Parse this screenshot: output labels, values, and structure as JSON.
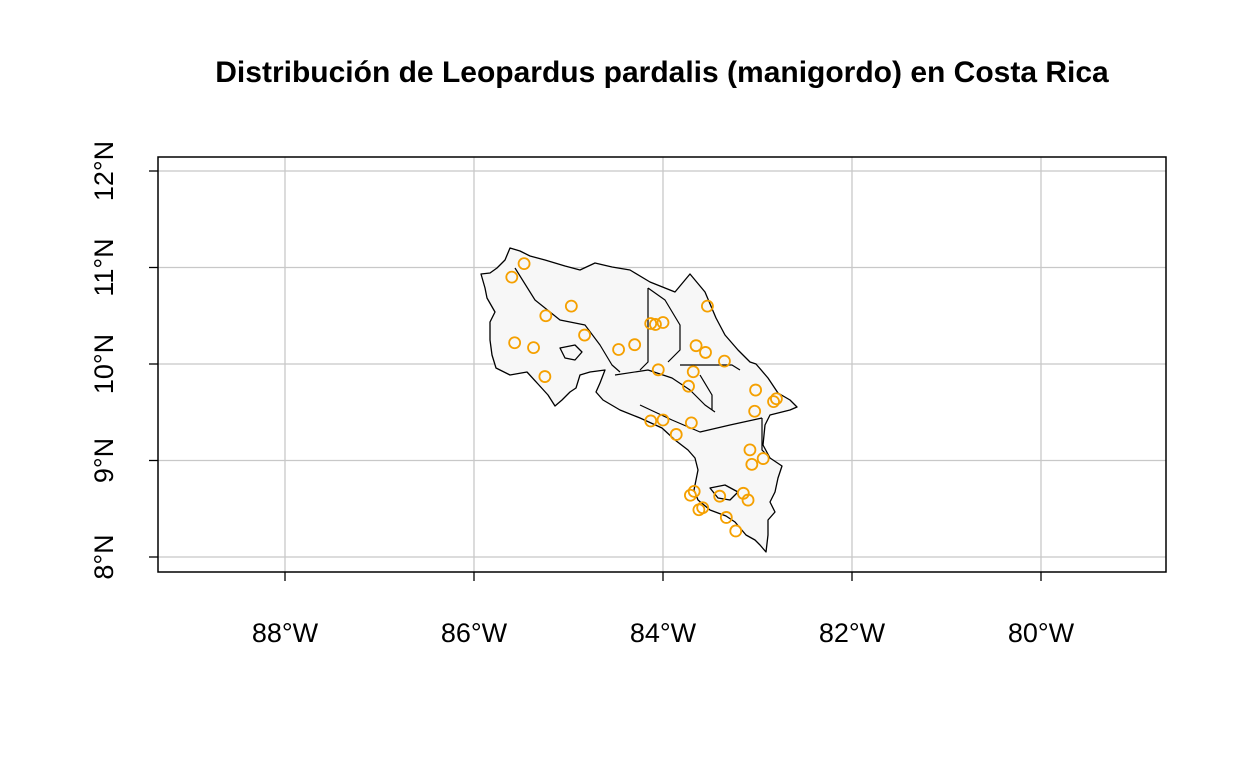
{
  "title": "Distribución de Leopardus pardalis (manigordo) en Costa Rica",
  "chart_data": {
    "type": "scatter",
    "map_region": "Costa Rica",
    "xlim": [
      -89.35,
      -78.65
    ],
    "ylim": [
      7.85,
      12.2
    ],
    "grid": true,
    "x_ticks": [
      {
        "value": -88,
        "label": "88°W"
      },
      {
        "value": -86,
        "label": "86°W"
      },
      {
        "value": -84,
        "label": "84°W"
      },
      {
        "value": -82,
        "label": "82°W"
      },
      {
        "value": -80,
        "label": "80°W"
      }
    ],
    "y_ticks": [
      {
        "value": 8,
        "label": "8°N"
      },
      {
        "value": 9,
        "label": "9°N"
      },
      {
        "value": 10,
        "label": "10°N"
      },
      {
        "value": 11,
        "label": "11°N"
      },
      {
        "value": 12,
        "label": "12°N"
      }
    ],
    "marker_color": "#f5a000",
    "points": [
      {
        "lon": -85.6,
        "lat": 10.9
      },
      {
        "lon": -85.47,
        "lat": 11.04
      },
      {
        "lon": -85.24,
        "lat": 10.5
      },
      {
        "lon": -84.97,
        "lat": 10.6
      },
      {
        "lon": -84.83,
        "lat": 10.3
      },
      {
        "lon": -85.57,
        "lat": 10.22
      },
      {
        "lon": -85.37,
        "lat": 10.17
      },
      {
        "lon": -85.25,
        "lat": 9.87
      },
      {
        "lon": -84.47,
        "lat": 10.15
      },
      {
        "lon": -84.3,
        "lat": 10.2
      },
      {
        "lon": -84.13,
        "lat": 10.42
      },
      {
        "lon": -84.08,
        "lat": 10.41
      },
      {
        "lon": -84.0,
        "lat": 10.43
      },
      {
        "lon": -84.05,
        "lat": 9.94
      },
      {
        "lon": -84.13,
        "lat": 9.41
      },
      {
        "lon": -84.0,
        "lat": 9.42
      },
      {
        "lon": -83.86,
        "lat": 9.27
      },
      {
        "lon": -83.7,
        "lat": 9.39
      },
      {
        "lon": -83.53,
        "lat": 10.6
      },
      {
        "lon": -83.65,
        "lat": 10.19
      },
      {
        "lon": -83.55,
        "lat": 10.12
      },
      {
        "lon": -83.35,
        "lat": 10.03
      },
      {
        "lon": -83.68,
        "lat": 9.92
      },
      {
        "lon": -83.73,
        "lat": 9.77
      },
      {
        "lon": -83.02,
        "lat": 9.73
      },
      {
        "lon": -83.03,
        "lat": 9.51
      },
      {
        "lon": -82.8,
        "lat": 9.64
      },
      {
        "lon": -82.83,
        "lat": 9.61
      },
      {
        "lon": -83.08,
        "lat": 9.11
      },
      {
        "lon": -82.94,
        "lat": 9.02
      },
      {
        "lon": -83.06,
        "lat": 8.96
      },
      {
        "lon": -83.71,
        "lat": 8.64
      },
      {
        "lon": -83.67,
        "lat": 8.68
      },
      {
        "lon": -83.58,
        "lat": 8.51
      },
      {
        "lon": -83.62,
        "lat": 8.49
      },
      {
        "lon": -83.4,
        "lat": 8.63
      },
      {
        "lon": -83.15,
        "lat": 8.66
      },
      {
        "lon": -83.1,
        "lat": 8.59
      },
      {
        "lon": -83.33,
        "lat": 8.41
      },
      {
        "lon": -83.23,
        "lat": 8.27
      }
    ]
  }
}
